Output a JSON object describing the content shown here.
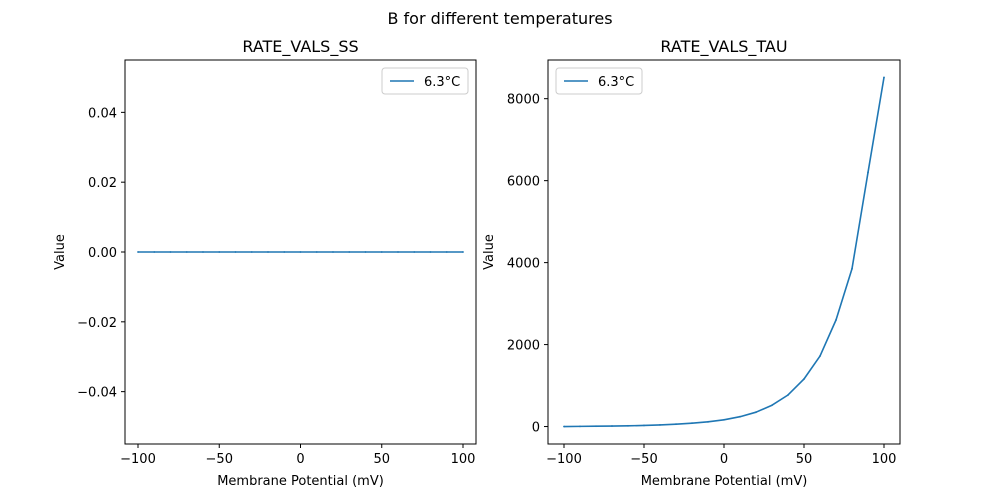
{
  "figure": {
    "suptitle": "B for different temperatures"
  },
  "chart_data": [
    {
      "type": "line",
      "title": "RATE_VALS_SS",
      "xlabel": "Membrane Potential (mV)",
      "ylabel": "Value",
      "xlim": [
        -108,
        108
      ],
      "ylim": [
        -0.055,
        0.055
      ],
      "xticks": [
        -100,
        -50,
        0,
        50,
        100
      ],
      "xtick_labels": [
        "−100",
        "−50",
        "0",
        "50",
        "100"
      ],
      "yticks": [
        -0.04,
        -0.02,
        0.0,
        0.02,
        0.04
      ],
      "ytick_labels": [
        "−0.04",
        "−0.02",
        "0.00",
        "0.02",
        "0.04"
      ],
      "legend_position": "upper right",
      "series": [
        {
          "name": "6.3°C",
          "color": "#1f77b4",
          "x": [
            -100,
            -90,
            -80,
            -70,
            -60,
            -50,
            -40,
            -30,
            -20,
            -10,
            0,
            10,
            20,
            30,
            40,
            50,
            60,
            70,
            80,
            90,
            100
          ],
          "y": [
            0,
            0,
            0,
            0,
            0,
            0,
            0,
            0,
            0,
            0,
            0,
            0,
            0,
            0,
            0,
            0,
            0,
            0,
            0,
            0,
            0
          ]
        }
      ]
    },
    {
      "type": "line",
      "title": "RATE_VALS_TAU",
      "xlabel": "Membrane Potential (mV)",
      "ylabel": "Value",
      "xlim": [
        -110,
        110
      ],
      "ylim": [
        -426,
        8944
      ],
      "xticks": [
        -100,
        -50,
        0,
        50,
        100
      ],
      "xtick_labels": [
        "−100",
        "−50",
        "0",
        "50",
        "100"
      ],
      "yticks": [
        0,
        2000,
        4000,
        6000,
        8000
      ],
      "ytick_labels": [
        "0",
        "2000",
        "4000",
        "6000",
        "8000"
      ],
      "legend_position": "upper left",
      "series": [
        {
          "name": "6.3°C",
          "color": "#1f77b4",
          "x": [
            -100,
            -90,
            -80,
            -70,
            -60,
            -50,
            -40,
            -30,
            -20,
            -10,
            0,
            10,
            20,
            30,
            40,
            50,
            60,
            70,
            80,
            90,
            100
          ],
          "y": [
            0,
            4,
            8,
            12,
            18,
            27,
            40,
            58,
            83,
            115,
            165,
            240,
            350,
            520,
            770,
            1160,
            1720,
            2600,
            3850,
            6200,
            8520
          ]
        }
      ]
    }
  ]
}
